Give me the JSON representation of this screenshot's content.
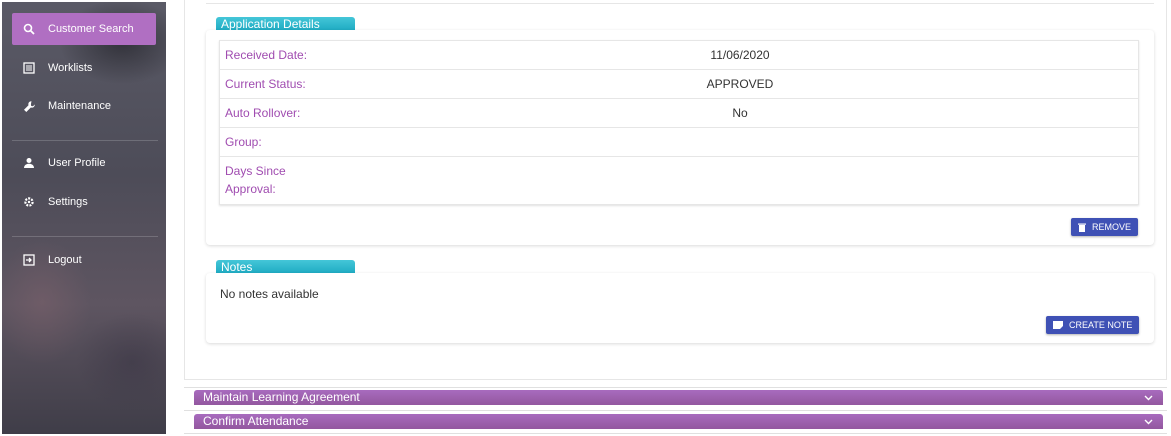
{
  "sidebar": {
    "items": [
      {
        "label": "Customer Search",
        "icon": "search-icon",
        "active": true
      },
      {
        "label": "Worklists",
        "icon": "list-icon"
      },
      {
        "label": "Maintenance",
        "icon": "wrench-icon"
      },
      {
        "label": "User Profile",
        "icon": "person-icon"
      },
      {
        "label": "Settings",
        "icon": "gear-icon"
      },
      {
        "label": "Logout",
        "icon": "logout-icon"
      }
    ]
  },
  "application": {
    "title": "Application Details",
    "rows": [
      {
        "label": "Received Date:",
        "value": "11/06/2020"
      },
      {
        "label": "Current Status:",
        "value": "APPROVED"
      },
      {
        "label": "Auto Rollover:",
        "value": "No"
      },
      {
        "label": "Group:",
        "value": ""
      },
      {
        "label": "Days Since Approval:",
        "value": ""
      }
    ],
    "remove_label": "REMOVE"
  },
  "notes": {
    "title": "Notes",
    "empty_text": "No notes available",
    "create_label": "CREATE NOTE"
  },
  "accordions": [
    {
      "label": "Maintain Learning Agreement"
    },
    {
      "label": "Confirm Attendance"
    }
  ],
  "colors": {
    "accent_purple": "#b06fc2",
    "label_purple": "#a04cb0",
    "teal": "#1aa8c0",
    "button_blue": "#3f51b5"
  }
}
